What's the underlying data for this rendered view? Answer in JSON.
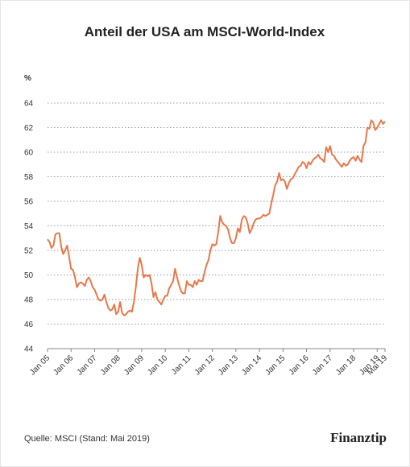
{
  "chart_data": {
    "type": "line",
    "title": "Anteil der USA am MSCI-World-Index",
    "y_unit": "%",
    "source": "Quelle: MSCI (Stand: Mai 2019)",
    "brand": "Finanztip",
    "categories": [
      "Jan 05",
      null,
      null,
      null,
      null,
      null,
      null,
      null,
      null,
      null,
      null,
      null,
      "Jan 06",
      null,
      null,
      null,
      null,
      null,
      null,
      null,
      null,
      null,
      null,
      null,
      "Jan 07",
      null,
      null,
      null,
      null,
      null,
      null,
      null,
      null,
      null,
      null,
      null,
      "Jan 08",
      null,
      null,
      null,
      null,
      null,
      null,
      null,
      null,
      null,
      null,
      null,
      "Jan 09",
      null,
      null,
      null,
      null,
      null,
      null,
      null,
      null,
      null,
      null,
      null,
      "Jan 10",
      null,
      null,
      null,
      null,
      null,
      null,
      null,
      null,
      null,
      null,
      null,
      "Jan 11",
      null,
      null,
      null,
      null,
      null,
      null,
      null,
      null,
      null,
      null,
      null,
      "Jan 12",
      null,
      null,
      null,
      null,
      null,
      null,
      null,
      null,
      null,
      null,
      null,
      "Jan 13",
      null,
      null,
      null,
      null,
      null,
      null,
      null,
      null,
      null,
      null,
      null,
      "Jan 14",
      null,
      null,
      null,
      null,
      null,
      null,
      null,
      null,
      null,
      null,
      null,
      "Jan 15",
      null,
      null,
      null,
      null,
      null,
      null,
      null,
      null,
      null,
      null,
      null,
      "Jan 16",
      null,
      null,
      null,
      null,
      null,
      null,
      null,
      null,
      null,
      null,
      null,
      "Jan 17",
      null,
      null,
      null,
      null,
      null,
      null,
      null,
      null,
      null,
      null,
      null,
      "Jan 18",
      null,
      null,
      null,
      null,
      null,
      null,
      null,
      null,
      null,
      null,
      null,
      "Jan 19",
      null,
      null,
      null,
      "Mai 19"
    ],
    "series": [
      {
        "name": "USA",
        "color": "#e8784a",
        "values": [
          52.9,
          52.7,
          52.2,
          52.4,
          53.3,
          53.4,
          53.4,
          52.3,
          51.7,
          52.0,
          52.4,
          51.5,
          50.5,
          50.4,
          49.8,
          49.0,
          49.3,
          49.4,
          49.3,
          49.1,
          49.6,
          49.8,
          49.5,
          49.0,
          48.8,
          48.4,
          48.0,
          47.9,
          48.0,
          48.4,
          47.8,
          47.3,
          47.1,
          47.2,
          47.6,
          46.8,
          47.0,
          47.8,
          46.9,
          46.7,
          46.8,
          47.0,
          47.1,
          47.0,
          47.8,
          49.0,
          50.5,
          51.4,
          50.8,
          49.8,
          50.0,
          49.9,
          50.0,
          49.3,
          48.2,
          48.6,
          48.0,
          47.8,
          47.6,
          48.0,
          48.3,
          48.3,
          48.9,
          49.2,
          49.5,
          50.5,
          49.8,
          49.2,
          48.7,
          48.5,
          48.5,
          49.5,
          49.2,
          49.2,
          49.0,
          49.5,
          49.2,
          49.6,
          49.5,
          49.5,
          50.2,
          50.8,
          51.2,
          52.0,
          52.5,
          52.4,
          52.5,
          53.5,
          54.8,
          54.3,
          54.1,
          54.0,
          53.7,
          53.0,
          52.6,
          52.6,
          53.0,
          53.8,
          53.5,
          54.5,
          54.8,
          54.7,
          54.2,
          53.4,
          53.7,
          54.2,
          54.5,
          54.6,
          54.6,
          54.7,
          54.9,
          54.8,
          54.9,
          55.0,
          55.8,
          56.5,
          57.3,
          57.6,
          58.3,
          57.7,
          57.8,
          57.6,
          57.0,
          57.5,
          57.8,
          57.9,
          58.2,
          58.5,
          58.8,
          58.9,
          59.2,
          59.1,
          58.7,
          59.2,
          59.0,
          59.3,
          59.5,
          59.6,
          59.8,
          59.5,
          59.4,
          59.2,
          60.4,
          60.0,
          60.5,
          59.8,
          59.7,
          59.4,
          59.2,
          59.0,
          58.8,
          59.1,
          58.9,
          59.0,
          59.3,
          59.5,
          59.6,
          59.3,
          59.7,
          59.4,
          59.2,
          60.5,
          60.8,
          62.0,
          61.9,
          62.6,
          62.4,
          61.8,
          62.0,
          62.3,
          62.6,
          62.3,
          62.5
        ]
      }
    ],
    "ylim": [
      44,
      64
    ],
    "yticks": [
      44,
      46,
      48,
      50,
      52,
      54,
      56,
      58,
      60,
      62,
      64
    ],
    "grid": true
  }
}
